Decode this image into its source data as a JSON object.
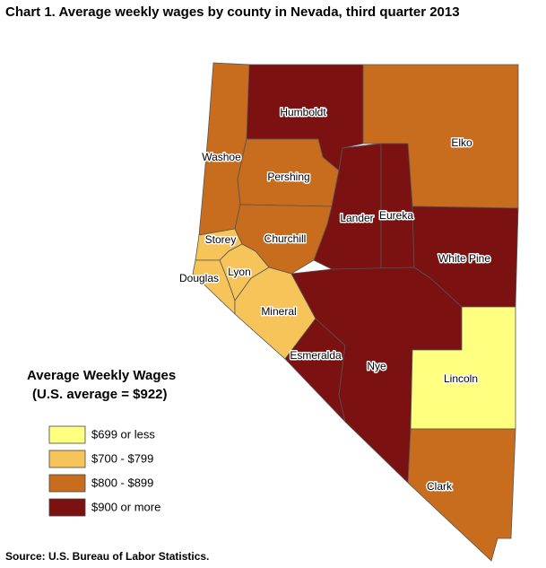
{
  "title": "Chart 1. Average weekly wages by county in Nevada, third quarter 2013",
  "legend": {
    "title": "Average Weekly Wages",
    "subtitle": "(U.S. average = $922)",
    "classes": [
      {
        "label": "$699 or less",
        "color": "#ffff80"
      },
      {
        "label": "$700 - $799",
        "color": "#f7c45a"
      },
      {
        "label": "$800 - $899",
        "color": "#c86c1e"
      },
      {
        "label": "$900 or more",
        "color": "#7b1111"
      }
    ]
  },
  "counties": [
    {
      "name": "Humboldt",
      "class": 3
    },
    {
      "name": "Elko",
      "class": 2
    },
    {
      "name": "Washoe",
      "class": 2
    },
    {
      "name": "Pershing",
      "class": 2
    },
    {
      "name": "Lander",
      "class": 3
    },
    {
      "name": "Eureka",
      "class": 3
    },
    {
      "name": "White Pine",
      "class": 3
    },
    {
      "name": "Storey",
      "class": 1
    },
    {
      "name": "Churchill",
      "class": 2
    },
    {
      "name": "Lyon",
      "class": 1
    },
    {
      "name": "Douglas",
      "class": 1
    },
    {
      "name": "Mineral",
      "class": 1
    },
    {
      "name": "Esmeralda",
      "class": 3
    },
    {
      "name": "Nye",
      "class": 3
    },
    {
      "name": "Lincoln",
      "class": 0
    },
    {
      "name": "Clark",
      "class": 2
    }
  ],
  "source": "Source: U.S. Bureau of Labor Statistics."
}
